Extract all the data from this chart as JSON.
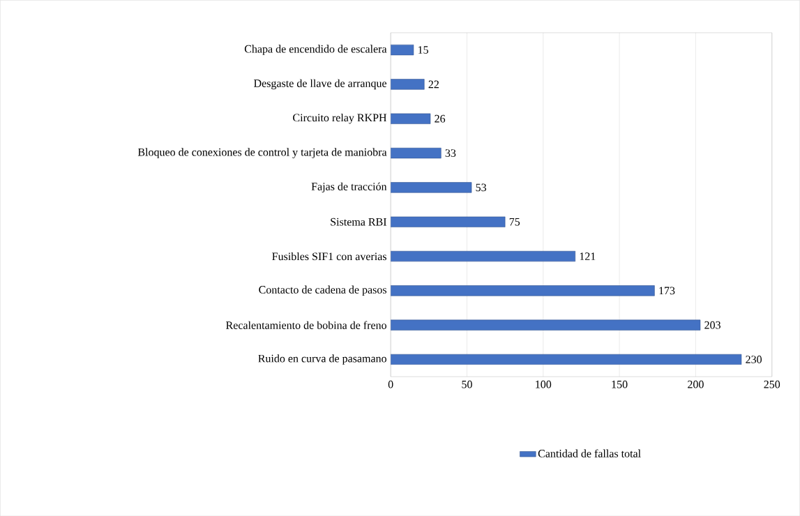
{
  "chart_data": {
    "type": "bar",
    "orientation": "horizontal",
    "categories": [
      "Chapa de encendido de escalera",
      "Desgaste de llave de arranque",
      "Circuito relay RKPH",
      "Bloqueo de conexiones de control y tarjeta de maniobra",
      "Fajas de tracción",
      "Sistema RBI",
      "Fusibles SIF1 con averias",
      "Contacto de cadena de pasos",
      "Recalentamiento de bobina de freno",
      "Ruido en curva de pasamano"
    ],
    "series": [
      {
        "name": "Cantidad de fallas total",
        "color": "#4472c4",
        "values": [
          15,
          22,
          26,
          33,
          53,
          75,
          121,
          173,
          203,
          230
        ]
      }
    ],
    "xlim": [
      0,
      250
    ],
    "xticks": [
      0,
      50,
      100,
      150,
      200,
      250
    ],
    "grid": "x",
    "legend": "bottom",
    "data_labels": true
  }
}
